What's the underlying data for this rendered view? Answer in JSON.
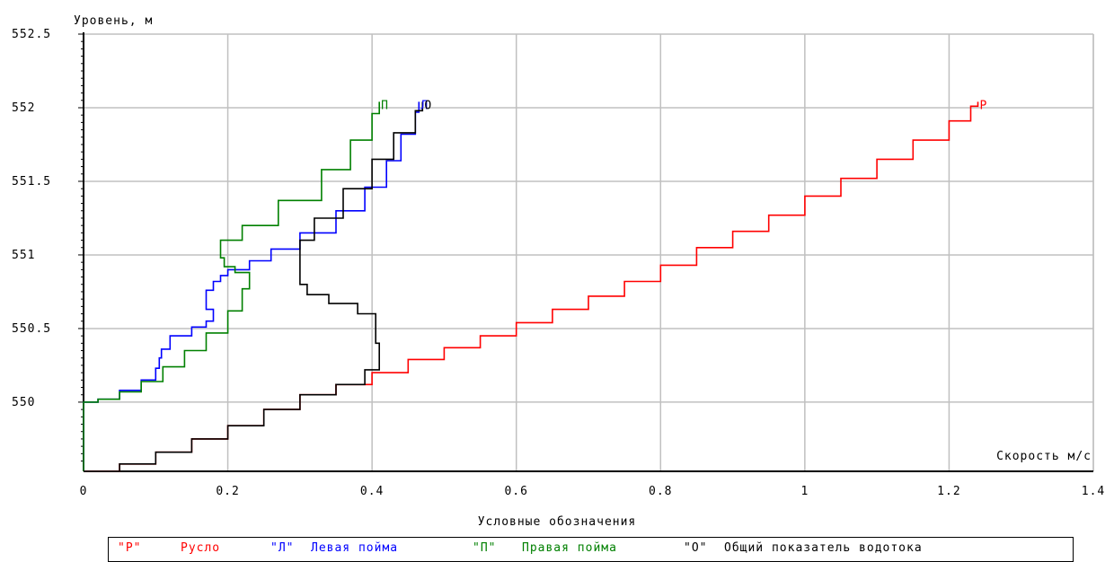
{
  "chart_data": {
    "type": "line",
    "ylabel": "Уровень, м",
    "xlabel": "Скорость м/с",
    "xlim": [
      0,
      1.4
    ],
    "ylim": [
      549.53,
      552.5
    ],
    "xticks": [
      0,
      0.2,
      0.4,
      0.6,
      0.8,
      1,
      1.2,
      1.4
    ],
    "xtick_labels": [
      "0",
      "0.2",
      "0.4",
      "0.6",
      "0.8",
      "1",
      "1.2",
      "1.4"
    ],
    "yticks": [
      550,
      550.5,
      551,
      551.5,
      552,
      552.5
    ],
    "ytick_labels": [
      "550",
      "550.5",
      "551",
      "551.5",
      "552",
      "552.5"
    ],
    "grid": true,
    "legend_title": "Условные обозначения",
    "series": [
      {
        "key": "R",
        "name": "Русло",
        "marker": "Р",
        "legend_code": "\"Р\"",
        "color": "#ff0000",
        "points": [
          [
            0,
            549.53
          ],
          [
            0.05,
            549.58
          ],
          [
            0.1,
            549.66
          ],
          [
            0.15,
            549.75
          ],
          [
            0.2,
            549.84
          ],
          [
            0.25,
            549.95
          ],
          [
            0.3,
            550.05
          ],
          [
            0.35,
            550.12
          ],
          [
            0.4,
            550.2
          ],
          [
            0.45,
            550.29
          ],
          [
            0.5,
            550.37
          ],
          [
            0.55,
            550.45
          ],
          [
            0.6,
            550.54
          ],
          [
            0.65,
            550.63
          ],
          [
            0.7,
            550.72
          ],
          [
            0.75,
            550.82
          ],
          [
            0.8,
            550.93
          ],
          [
            0.85,
            551.05
          ],
          [
            0.9,
            551.16
          ],
          [
            0.95,
            551.27
          ],
          [
            1.0,
            551.4
          ],
          [
            1.05,
            551.52
          ],
          [
            1.1,
            551.65
          ],
          [
            1.15,
            551.78
          ],
          [
            1.2,
            551.91
          ],
          [
            1.23,
            552.01
          ],
          [
            1.24,
            552.04
          ]
        ]
      },
      {
        "key": "L",
        "name": "Левая пойма",
        "marker": "Л",
        "legend_code": "\"Л\"",
        "color": "#0000ff",
        "points": [
          [
            0,
            549.53
          ],
          [
            0,
            550.0
          ],
          [
            0.02,
            550.02
          ],
          [
            0.05,
            550.08
          ],
          [
            0.08,
            550.15
          ],
          [
            0.1,
            550.23
          ],
          [
            0.105,
            550.3
          ],
          [
            0.108,
            550.36
          ],
          [
            0.12,
            550.45
          ],
          [
            0.15,
            550.51
          ],
          [
            0.17,
            550.55
          ],
          [
            0.18,
            550.63
          ],
          [
            0.17,
            550.7
          ],
          [
            0.17,
            550.76
          ],
          [
            0.18,
            550.82
          ],
          [
            0.19,
            550.86
          ],
          [
            0.2,
            550.9
          ],
          [
            0.23,
            550.96
          ],
          [
            0.26,
            551.04
          ],
          [
            0.3,
            551.15
          ],
          [
            0.35,
            551.3
          ],
          [
            0.39,
            551.46
          ],
          [
            0.42,
            551.64
          ],
          [
            0.44,
            551.82
          ],
          [
            0.46,
            551.97
          ],
          [
            0.465,
            552.04
          ]
        ]
      },
      {
        "key": "P",
        "name": "Правая пойма",
        "marker": "П",
        "legend_code": "\"П\"",
        "color": "#008000",
        "points": [
          [
            0,
            549.53
          ],
          [
            0,
            550.0
          ],
          [
            0.02,
            550.02
          ],
          [
            0.05,
            550.07
          ],
          [
            0.08,
            550.14
          ],
          [
            0.11,
            550.24
          ],
          [
            0.14,
            550.35
          ],
          [
            0.17,
            550.47
          ],
          [
            0.2,
            550.62
          ],
          [
            0.22,
            550.77
          ],
          [
            0.23,
            550.88
          ],
          [
            0.21,
            550.92
          ],
          [
            0.195,
            550.98
          ],
          [
            0.19,
            551.03
          ],
          [
            0.19,
            551.1
          ],
          [
            0.22,
            551.2
          ],
          [
            0.27,
            551.37
          ],
          [
            0.33,
            551.58
          ],
          [
            0.37,
            551.78
          ],
          [
            0.4,
            551.96
          ],
          [
            0.41,
            552.04
          ]
        ]
      },
      {
        "key": "O",
        "name": "Общий показатель водотока",
        "marker": "О",
        "legend_code": "\"О\"",
        "color": "#000000",
        "points": [
          [
            0,
            549.53
          ],
          [
            0.05,
            549.58
          ],
          [
            0.1,
            549.66
          ],
          [
            0.15,
            549.75
          ],
          [
            0.2,
            549.84
          ],
          [
            0.25,
            549.95
          ],
          [
            0.3,
            550.05
          ],
          [
            0.35,
            550.12
          ],
          [
            0.39,
            550.22
          ],
          [
            0.41,
            550.3
          ],
          [
            0.41,
            550.4
          ],
          [
            0.405,
            550.5
          ],
          [
            0.405,
            550.6
          ],
          [
            0.38,
            550.67
          ],
          [
            0.34,
            550.73
          ],
          [
            0.31,
            550.8
          ],
          [
            0.3,
            550.88
          ],
          [
            0.3,
            551.0
          ],
          [
            0.3,
            551.1
          ],
          [
            0.32,
            551.25
          ],
          [
            0.36,
            551.45
          ],
          [
            0.4,
            551.65
          ],
          [
            0.43,
            551.83
          ],
          [
            0.46,
            551.98
          ],
          [
            0.47,
            552.04
          ]
        ]
      }
    ]
  }
}
